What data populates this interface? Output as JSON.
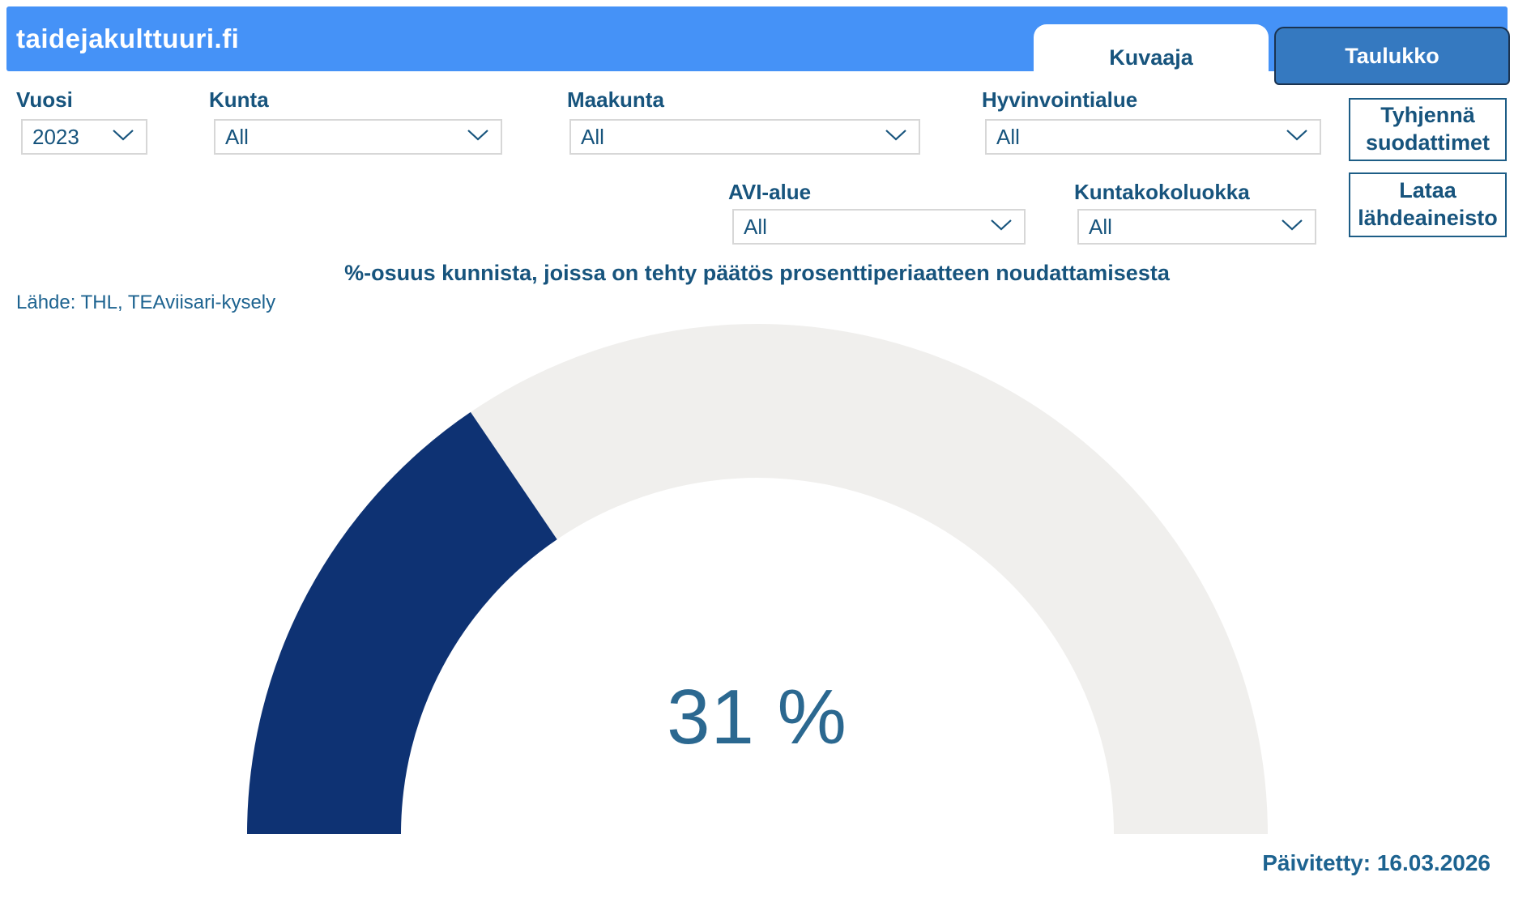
{
  "site": {
    "logo": "taidejakulttuuri.fi"
  },
  "tabs": {
    "kuvaaja": {
      "label": "Kuvaaja",
      "active": true
    },
    "taulukko": {
      "label": "Taulukko",
      "active": false
    }
  },
  "filters": {
    "vuosi": {
      "label": "Vuosi",
      "value": "2023"
    },
    "kunta": {
      "label": "Kunta",
      "value": "All"
    },
    "maakunta": {
      "label": "Maakunta",
      "value": "All"
    },
    "hyvinvointialue": {
      "label": "Hyvinvointialue",
      "value": "All"
    },
    "avi_alue": {
      "label": "AVI-alue",
      "value": "All"
    },
    "kuntakokoluokka": {
      "label": "Kuntakokoluokka",
      "value": "All"
    }
  },
  "buttons": {
    "clear_filters": "Tyhjennä suodattimet",
    "download_source": "Lataa lähdeaineisto"
  },
  "chart": {
    "title": "%-osuus kunnista, joissa on tehty päätös prosenttiperiaatteen noudattamisesta",
    "source": "Lähde: THL, TEAviisari-kysely",
    "value_label": "31 %"
  },
  "chart_data": {
    "type": "gauge",
    "percent": 31,
    "min": 0,
    "max": 100,
    "shape": "half-donut",
    "start_angle_deg": 180,
    "end_angle_deg": 0,
    "title": "%-osuus kunnista, joissa on tehty päätös prosenttiperiaatteen noudattamisesta",
    "source": "Lähde: THL, TEAviisari-kysely",
    "center_label": "31 %",
    "colors": {
      "fill": "#0e3273",
      "track": "#f0efed",
      "value_text": "#2b6890"
    }
  },
  "footer": {
    "updated": "Päivitetty: 16.03.2026"
  },
  "colors": {
    "header_blue": "#4592f7",
    "inactive_tab_blue": "#3579c0",
    "label_teal": "#17547d",
    "source_teal": "#1d6390"
  }
}
